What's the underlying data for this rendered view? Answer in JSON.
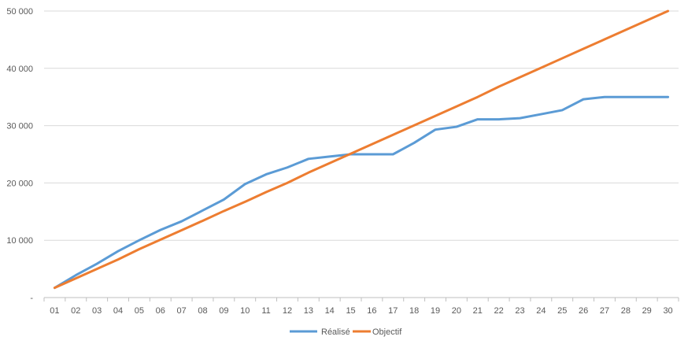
{
  "chart_data": {
    "type": "line",
    "categories": [
      "01",
      "02",
      "03",
      "04",
      "05",
      "06",
      "07",
      "08",
      "09",
      "10",
      "11",
      "12",
      "13",
      "14",
      "15",
      "16",
      "17",
      "18",
      "19",
      "20",
      "21",
      "22",
      "23",
      "24",
      "25",
      "26",
      "27",
      "28",
      "29",
      "30"
    ],
    "series": [
      {
        "name": "Réalisé",
        "color": "#5b9bd5",
        "values": [
          1700,
          3900,
          5900,
          8100,
          10000,
          11800,
          13300,
          15200,
          17100,
          19800,
          21500,
          22700,
          24200,
          24600,
          25000,
          25000,
          25000,
          27000,
          29300,
          29800,
          31100,
          31100,
          31300,
          32000,
          32700,
          34600,
          35000,
          35000,
          35000,
          35000
        ]
      },
      {
        "name": "Objectif",
        "color": "#ed7d31",
        "values": [
          1700,
          3350,
          5000,
          6650,
          8450,
          10100,
          11750,
          13400,
          15100,
          16700,
          18400,
          20000,
          21800,
          23450,
          25100,
          26750,
          28400,
          30050,
          31700,
          33350,
          35000,
          36800,
          38450,
          40100,
          41750,
          43400,
          45050,
          46700,
          48350,
          50000
        ]
      }
    ],
    "ylim": [
      0,
      50000
    ],
    "yticks": [
      0,
      10000,
      20000,
      30000,
      40000,
      50000
    ],
    "ytick_labels": [
      "-",
      "10 000",
      "20 000",
      "30 000",
      "40 000",
      "50 000"
    ],
    "grid": true,
    "legend": "bottom-center",
    "axis_color": "#bfbfbf",
    "grid_color": "#d9d9d9",
    "text_color": "#595959"
  }
}
